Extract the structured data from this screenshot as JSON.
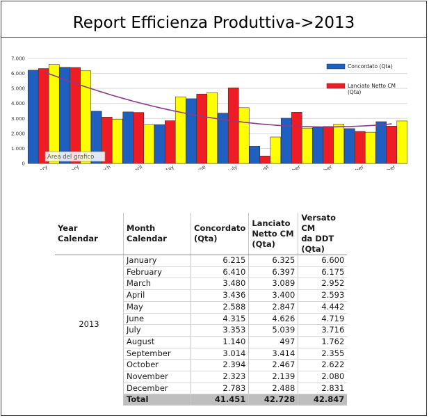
{
  "report": {
    "title": "Report Efficienza Produttiva->2013"
  },
  "chart_data": {
    "type": "bar",
    "categories": [
      "January",
      "February",
      "March",
      "April",
      "May",
      "June",
      "July",
      "August",
      "September",
      "October",
      "November",
      "December"
    ],
    "series": [
      {
        "name": "Concordato (Qta)",
        "color": "#1f5fbf",
        "values": [
          6215,
          6410,
          3480,
          3436,
          2588,
          4315,
          3353,
          1140,
          3014,
          2394,
          2323,
          2783
        ]
      },
      {
        "name": "Lanciato Netto CM (Qta)",
        "color": "#ee1c24",
        "values": [
          6325,
          6397,
          3089,
          3400,
          2847,
          4626,
          5039,
          497,
          3414,
          2467,
          2139,
          2488
        ]
      },
      {
        "name": "Versato CM da DDT (Qta)",
        "color": "#ffff00",
        "values": [
          6600,
          6175,
          2952,
          2593,
          4442,
          4719,
          3716,
          1762,
          2355,
          2622,
          2080,
          2831
        ]
      }
    ],
    "legend_entries": [
      "Concordato (Qta)",
      "Lanciato Netto CM (Qta)"
    ],
    "trendline": {
      "color": "#8b3a8b",
      "type": "polynomial"
    },
    "yticks": [
      "0",
      "1.000",
      "2.000",
      "3.000",
      "4.000",
      "5.000",
      "6.000",
      "7.000"
    ],
    "ylim": [
      0,
      7000
    ],
    "grid": true,
    "legend_position": "top-right",
    "tooltip": "Area del grafico"
  },
  "table": {
    "headers": {
      "year": "Year Calendar",
      "month": "Month Calendar",
      "c1": [
        "Concordato",
        "(Qta)"
      ],
      "c2": [
        "Lanciato",
        "Netto CM",
        "(Qta)"
      ],
      "c3": [
        "Versato CM",
        "da DDT",
        "(Qta)"
      ]
    },
    "year": "2013",
    "rows": [
      {
        "month": "January",
        "c1": "6.215",
        "c2": "6.325",
        "c3": "6.600"
      },
      {
        "month": "February",
        "c1": "6.410",
        "c2": "6.397",
        "c3": "6.175"
      },
      {
        "month": "March",
        "c1": "3.480",
        "c2": "3.089",
        "c3": "2.952"
      },
      {
        "month": "April",
        "c1": "3.436",
        "c2": "3.400",
        "c3": "2.593"
      },
      {
        "month": "May",
        "c1": "2.588",
        "c2": "2.847",
        "c3": "4.442"
      },
      {
        "month": "June",
        "c1": "4.315",
        "c2": "4.626",
        "c3": "4.719"
      },
      {
        "month": "July",
        "c1": "3.353",
        "c2": "5.039",
        "c3": "3.716"
      },
      {
        "month": "August",
        "c1": "1.140",
        "c2": "497",
        "c3": "1.762"
      },
      {
        "month": "September",
        "c1": "3.014",
        "c2": "3.414",
        "c3": "2.355"
      },
      {
        "month": "October",
        "c1": "2.394",
        "c2": "2.467",
        "c3": "2.622"
      },
      {
        "month": "November",
        "c1": "2.323",
        "c2": "2.139",
        "c3": "2.080"
      },
      {
        "month": "December",
        "c1": "2.783",
        "c2": "2.488",
        "c3": "2.831"
      }
    ],
    "total": {
      "label": "Total",
      "c1": "41.451",
      "c2": "42.728",
      "c3": "42.847"
    }
  }
}
